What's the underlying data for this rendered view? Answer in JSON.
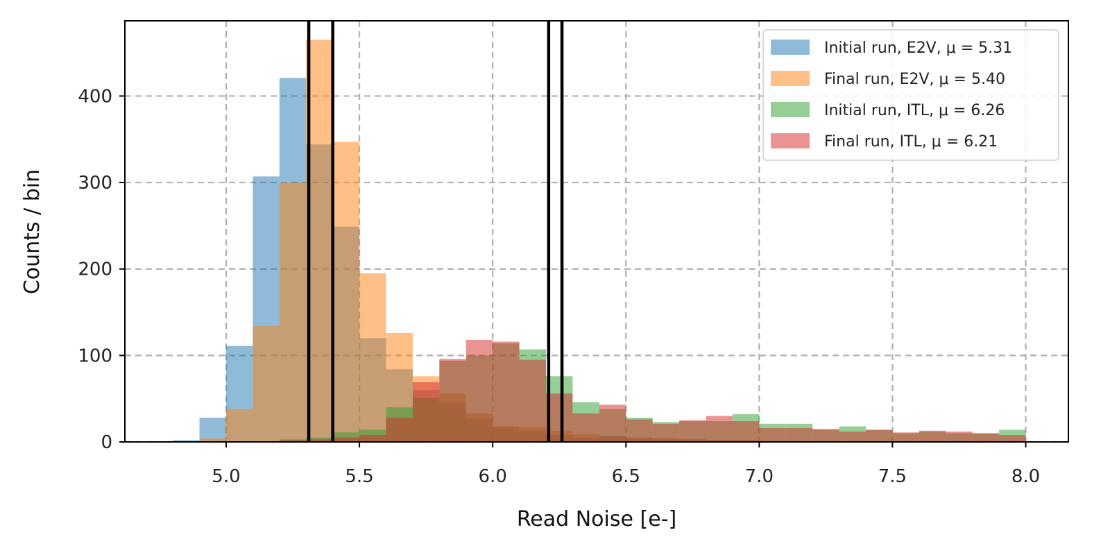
{
  "chart_data": {
    "type": "bar",
    "title": "",
    "xlabel": "Read Noise [e-]",
    "ylabel": "Counts / bin",
    "xlim": [
      4.62,
      8.16
    ],
    "ylim": [
      0,
      487
    ],
    "x_ticks": [
      "5.0",
      "5.5",
      "6.0",
      "6.5",
      "7.0",
      "7.5",
      "8.0"
    ],
    "y_ticks": [
      "0",
      "100",
      "200",
      "300",
      "400"
    ],
    "grid": true,
    "grid_style": "dashed",
    "legend_position": "top-right",
    "bin_edges": [
      4.6,
      4.7,
      4.8,
      4.9,
      5.0,
      5.1,
      5.2,
      5.3,
      5.4,
      5.5,
      5.6,
      5.7,
      5.8,
      5.9,
      6.0,
      6.1,
      6.2,
      6.3,
      6.4,
      6.5,
      6.6,
      6.7,
      6.8,
      6.9,
      7.0,
      7.1,
      7.2,
      7.3,
      7.4,
      7.5,
      7.6,
      7.7,
      7.8,
      7.9,
      8.0
    ],
    "series": [
      {
        "name": "Initial run, E2V, μ = 5.31",
        "color": "#1f77b4",
        "values": [
          0,
          0,
          2,
          28,
          111,
          307,
          421,
          344,
          249,
          120,
          84,
          60,
          45,
          27,
          17,
          13,
          8,
          5,
          7,
          5,
          4,
          3,
          2,
          2,
          1,
          1,
          1,
          0,
          0,
          0,
          0,
          0,
          0,
          0
        ]
      },
      {
        "name": "Final run, E2V, μ = 5.40",
        "color": "#ff7f0e",
        "values": [
          0,
          0,
          0,
          4,
          38,
          134,
          300,
          465,
          347,
          195,
          126,
          76,
          56,
          33,
          18,
          17,
          13,
          9,
          6,
          5,
          4,
          3,
          2,
          2,
          1,
          1,
          1,
          0,
          0,
          0,
          0,
          0,
          0,
          0
        ]
      },
      {
        "name": "Initial run, ITL, μ = 6.26",
        "color": "#2ca02c",
        "values": [
          0,
          0,
          0,
          0,
          0,
          0,
          3,
          5,
          11,
          14,
          40,
          51,
          94,
          100,
          114,
          107,
          76,
          46,
          38,
          28,
          23,
          24,
          24,
          32,
          21,
          21,
          14,
          18,
          14,
          10,
          12,
          10,
          10,
          14
        ]
      },
      {
        "name": "Final run, ITL, μ = 6.21",
        "color": "#d62728",
        "values": [
          0,
          0,
          0,
          0,
          0,
          0,
          2,
          3,
          5,
          8,
          28,
          69,
          96,
          118,
          116,
          95,
          56,
          33,
          43,
          26,
          21,
          25,
          30,
          24,
          16,
          16,
          15,
          12,
          14,
          11,
          13,
          12,
          10,
          8
        ]
      }
    ],
    "vlines": [
      5.31,
      5.4,
      6.21,
      6.26
    ],
    "vline_color": "#000000"
  }
}
